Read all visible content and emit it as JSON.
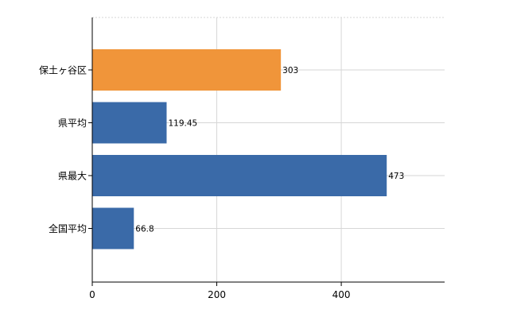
{
  "chart_data": {
    "type": "bar",
    "orientation": "horizontal",
    "categories": [
      "保土ヶ谷区",
      "県平均",
      "県最大",
      "全国平均"
    ],
    "values": [
      303,
      119.45,
      473,
      66.8
    ],
    "value_labels": [
      "303",
      "119.45",
      "473",
      "66.8"
    ],
    "x_ticks": [
      0,
      200,
      400
    ],
    "x_tick_labels": [
      "0",
      "200",
      "400"
    ],
    "xlim": [
      0,
      566
    ],
    "grid": true,
    "legend": "none",
    "colors": {
      "highlight": "#F0953A",
      "default": "#3A6AA8"
    },
    "highlight_index": 0
  }
}
